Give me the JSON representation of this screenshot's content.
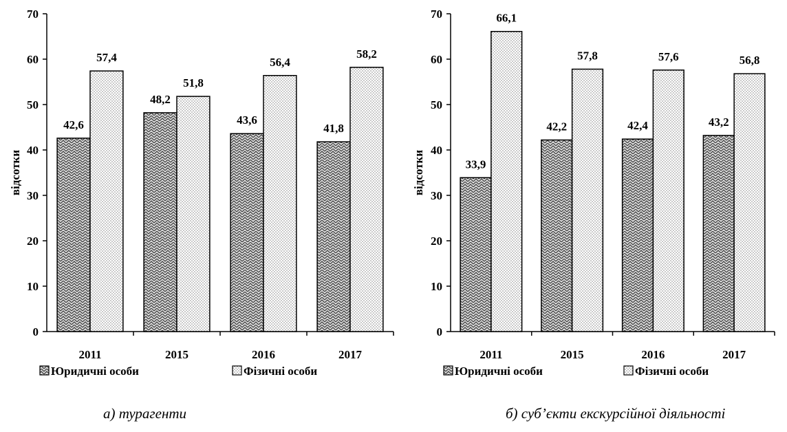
{
  "chart_data": [
    {
      "type": "bar",
      "categories": [
        "2011",
        "2015",
        "2016",
        "2017"
      ],
      "series": [
        {
          "name": "Юридичні особи",
          "values": [
            42.6,
            48.2,
            43.6,
            41.8
          ],
          "value_labels": [
            "42,6",
            "48,2",
            "43,6",
            "41,8"
          ]
        },
        {
          "name": "Фізичні особи",
          "values": [
            57.4,
            51.8,
            56.4,
            58.2
          ],
          "value_labels": [
            "57,4",
            "51,8",
            "56,4",
            "58,2"
          ]
        }
      ],
      "ylabel": "відсотки",
      "ylim": [
        0,
        70
      ],
      "yticks": [
        "0",
        "10",
        "20",
        "30",
        "40",
        "50",
        "60",
        "70"
      ],
      "caption": "а) турагенти",
      "legend_position": "bottom",
      "grid": false
    },
    {
      "type": "bar",
      "categories": [
        "2011",
        "2015",
        "2016",
        "2017"
      ],
      "series": [
        {
          "name": "Юридичні особи",
          "values": [
            33.9,
            42.2,
            42.4,
            43.2
          ],
          "value_labels": [
            "33,9",
            "42,2",
            "42,4",
            "43,2"
          ]
        },
        {
          "name": "Фізичні особи",
          "values": [
            66.1,
            57.8,
            57.6,
            56.8
          ],
          "value_labels": [
            "66,1",
            "57,8",
            "57,6",
            "56,8"
          ]
        }
      ],
      "ylabel": "відсотки",
      "ylim": [
        0,
        70
      ],
      "yticks": [
        "0",
        "10",
        "20",
        "30",
        "40",
        "50",
        "60",
        "70"
      ],
      "caption": "б) суб’єкти екскурсійної діяльності",
      "legend_position": "bottom",
      "grid": false
    }
  ]
}
